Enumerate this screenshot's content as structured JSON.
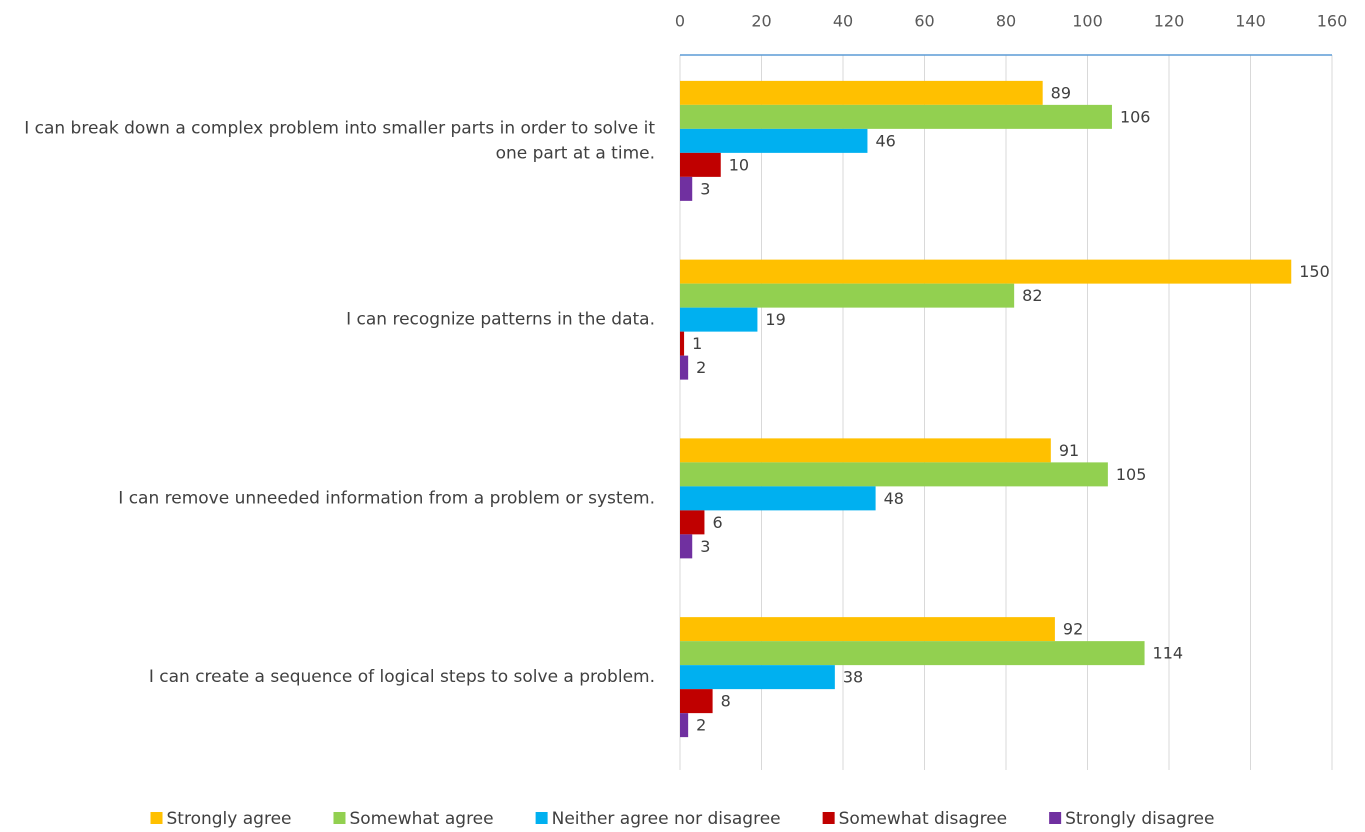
{
  "chart_data": {
    "type": "barh",
    "categories": [
      "I can break down a complex problem into smaller parts in order to solve it one part at a time.",
      "I can recognize patterns in the data.",
      "I can remove unneeded information from a problem or system.",
      "I can create a sequence of logical steps to solve a problem."
    ],
    "series": [
      {
        "name": "Strongly agree",
        "color": "#FFC000",
        "values": [
          89,
          150,
          91,
          92
        ]
      },
      {
        "name": "Somewhat agree",
        "color": "#92D050",
        "values": [
          106,
          82,
          105,
          114
        ]
      },
      {
        "name": "Neither agree nor disagree",
        "color": "#00B0F0",
        "values": [
          46,
          19,
          48,
          38
        ]
      },
      {
        "name": "Somewhat disagree",
        "color": "#C00000",
        "values": [
          10,
          1,
          6,
          8
        ]
      },
      {
        "name": "Strongly disagree",
        "color": "#7030A0",
        "values": [
          3,
          2,
          3,
          2
        ]
      }
    ],
    "xlim": [
      0,
      160
    ],
    "xticks": [
      0,
      20,
      40,
      60,
      80,
      100,
      120,
      140,
      160
    ],
    "grid": true,
    "legend": "bottom"
  }
}
